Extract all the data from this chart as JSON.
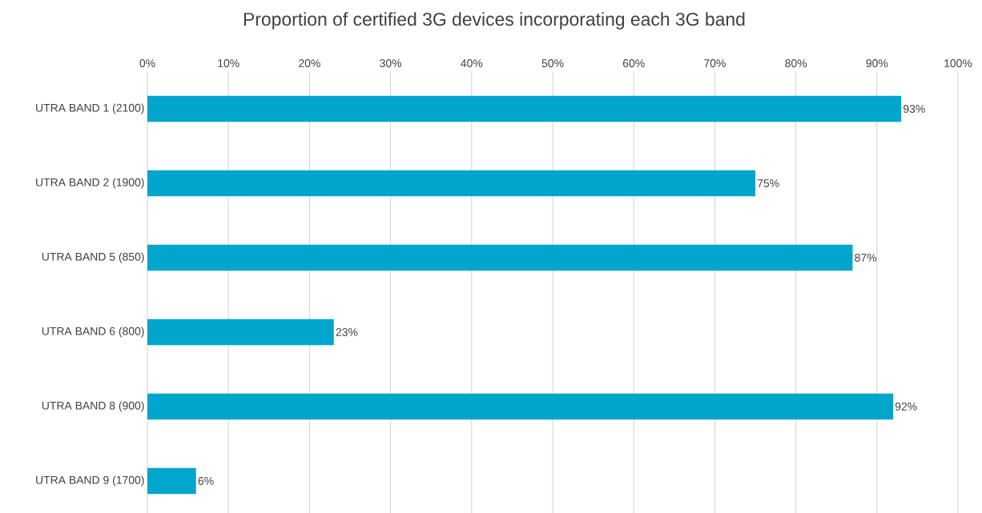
{
  "chart_data": {
    "type": "bar",
    "orientation": "horizontal",
    "title": "Proportion of certified 3G devices incorporating each 3G band",
    "categories": [
      "UTRA BAND 1 (2100)",
      "UTRA BAND 2 (1900)",
      "UTRA BAND 5 (850)",
      "UTRA BAND 6 (800)",
      "UTRA BAND 8 (900)",
      "UTRA BAND 9 (1700)"
    ],
    "values": [
      93,
      75,
      87,
      23,
      92,
      6
    ],
    "value_labels": [
      "93%",
      "75%",
      "87%",
      "23%",
      "92%",
      "6%"
    ],
    "color": "#02a6cc",
    "xlim": [
      0,
      100
    ],
    "xticks": [
      {
        "value": 0,
        "label": "0%"
      },
      {
        "value": 10,
        "label": "10%"
      },
      {
        "value": 20,
        "label": "20%"
      },
      {
        "value": 30,
        "label": "30%"
      },
      {
        "value": 40,
        "label": "40%"
      },
      {
        "value": 50,
        "label": "50%"
      },
      {
        "value": 60,
        "label": "60%"
      },
      {
        "value": 70,
        "label": "70%"
      },
      {
        "value": 80,
        "label": "80%"
      },
      {
        "value": 90,
        "label": "90%"
      },
      {
        "value": 100,
        "label": "100%"
      }
    ],
    "grid": "x"
  }
}
